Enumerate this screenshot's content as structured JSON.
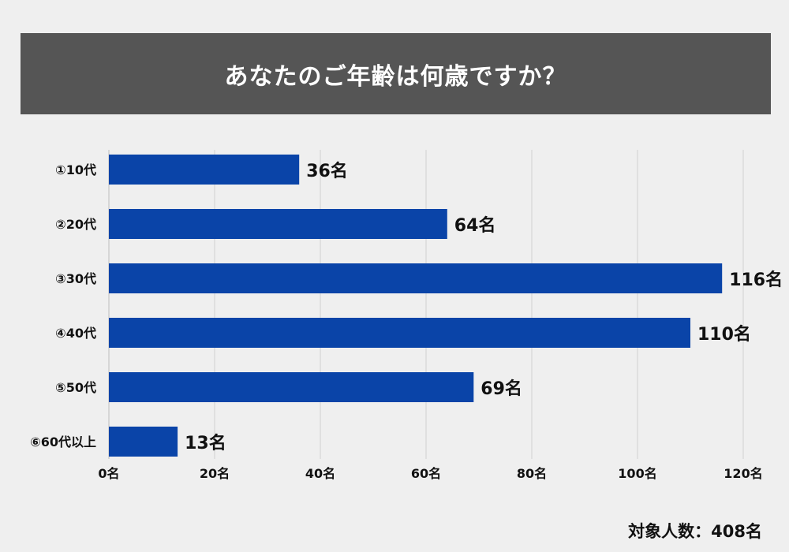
{
  "chart_data": {
    "type": "bar",
    "orientation": "horizontal",
    "title": "あなたのご年齢は何歳ですか？",
    "categories": [
      "①10代",
      "②20代",
      "③30代",
      "④40代",
      "⑤50代",
      "⑥60代以上"
    ],
    "values": [
      36,
      64,
      116,
      110,
      69,
      13
    ],
    "value_labels": [
      "36名",
      "64名",
      "116名",
      "110名",
      "69名",
      "13名"
    ],
    "x_ticks": [
      0,
      20,
      40,
      60,
      80,
      100,
      120
    ],
    "x_tick_labels": [
      "0名",
      "20名",
      "40名",
      "60名",
      "80名",
      "100名",
      "120名"
    ],
    "xlim": [
      0,
      120
    ],
    "grid": true,
    "bar_color": "#0a44a8",
    "footnote": "対象人数：408名"
  }
}
